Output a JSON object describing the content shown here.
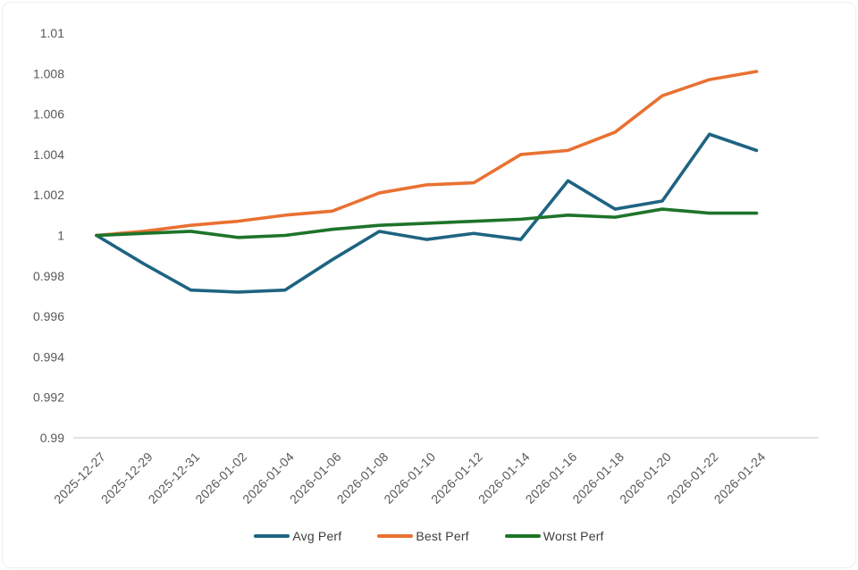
{
  "chart_data": {
    "type": "line",
    "title": "",
    "xlabel": "",
    "ylabel": "",
    "grid": false,
    "legend_position": "bottom",
    "ylim": [
      0.99,
      1.01
    ],
    "y_ticks": [
      "0.99",
      "0.992",
      "0.994",
      "0.996",
      "0.998",
      "1",
      "1.002",
      "1.004",
      "1.006",
      "1.008",
      "1.01"
    ],
    "categories": [
      "2025-12-27",
      "2025-12-29",
      "2025-12-31",
      "2026-01-02",
      "2026-01-04",
      "2026-01-06",
      "2026-01-08",
      "2026-01-10",
      "2026-01-12",
      "2026-01-14",
      "2026-01-16",
      "2026-01-18",
      "2026-01-20",
      "2026-01-22",
      "2026-01-24"
    ],
    "series": [
      {
        "name": "Avg Perf",
        "color": "#1e6482",
        "values": [
          1.0,
          0.9986,
          0.9973,
          0.9972,
          0.9973,
          0.9988,
          1.0002,
          0.9998,
          1.0001,
          0.9998,
          1.0027,
          1.0013,
          1.0017,
          1.005,
          1.0042
        ]
      },
      {
        "name": "Best Perf",
        "color": "#e97132",
        "values": [
          1.0,
          1.0002,
          1.0005,
          1.0007,
          1.001,
          1.0012,
          1.0021,
          1.0025,
          1.0026,
          1.004,
          1.0042,
          1.0051,
          1.0069,
          1.0077,
          1.0081
        ]
      },
      {
        "name": "Worst Perf",
        "color": "#1e7429",
        "values": [
          1.0,
          1.0001,
          1.0002,
          0.9999,
          1.0,
          1.0003,
          1.0005,
          1.0006,
          1.0007,
          1.0008,
          1.001,
          1.0009,
          1.0013,
          1.0011,
          1.0011
        ]
      }
    ]
  },
  "colors": {
    "axis_text": "#595959",
    "axis_line": "#d9d9d9",
    "background": "#ffffff"
  }
}
